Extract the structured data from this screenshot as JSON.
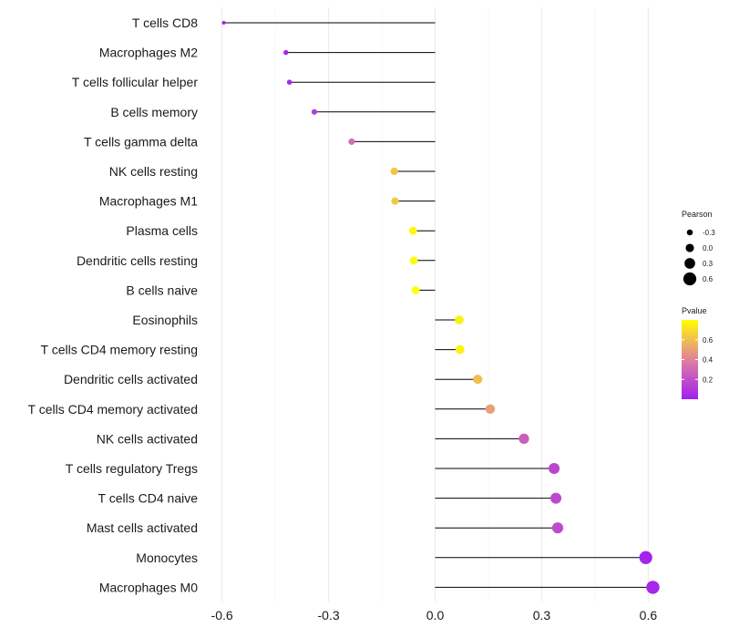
{
  "chart_data": {
    "type": "lollipop",
    "xlabel": "",
    "ylabel": "",
    "xlim": [
      -0.64,
      0.64
    ],
    "xticks": [
      "-0.6",
      "-0.3",
      "0.0",
      "0.3",
      "0.6"
    ],
    "xtick_values": [
      -0.6,
      -0.3,
      0.0,
      0.3,
      0.6
    ],
    "categories": [
      "T cells CD8",
      "Macrophages M2",
      "T cells follicular helper",
      "B cells memory",
      "T cells gamma delta",
      "NK cells resting",
      "Macrophages M1",
      "Plasma cells",
      "Dendritic cells resting",
      "B cells naive",
      "Eosinophils",
      "T cells CD4 memory resting",
      "Dendritic cells activated",
      "T cells CD4 memory activated",
      "NK cells activated",
      "T cells regulatory  Tregs ",
      "T cells CD4 naive",
      "Mast cells activated",
      "Monocytes",
      "Macrophages M0"
    ],
    "pearson": [
      -0.595,
      -0.42,
      -0.41,
      -0.34,
      -0.235,
      -0.115,
      -0.113,
      -0.062,
      -0.06,
      -0.055,
      0.068,
      0.07,
      0.12,
      0.155,
      0.25,
      0.335,
      0.34,
      0.345,
      0.593,
      0.613
    ],
    "pvalue": [
      0.005,
      0.04,
      0.05,
      0.12,
      0.32,
      0.62,
      0.63,
      0.78,
      0.78,
      0.8,
      0.76,
      0.76,
      0.6,
      0.5,
      0.26,
      0.16,
      0.17,
      0.18,
      0.02,
      0.03
    ],
    "legend_size": {
      "title": "Pearson",
      "labels": [
        "-0.3",
        "0.0",
        "0.3",
        "0.6"
      ],
      "values": [
        -0.3,
        0.0,
        0.3,
        0.6
      ]
    },
    "legend_color": {
      "title": "Pvalue",
      "labels": [
        "0.6",
        "0.4",
        "0.2"
      ],
      "values": [
        0.6,
        0.4,
        0.2
      ],
      "range": [
        0.0,
        0.8
      ],
      "low_color": "#a020f0",
      "mid_color": "#e0809e",
      "high_color": "#ffff00"
    },
    "line_color": "#000000",
    "grid_color": "#ebebeb"
  }
}
